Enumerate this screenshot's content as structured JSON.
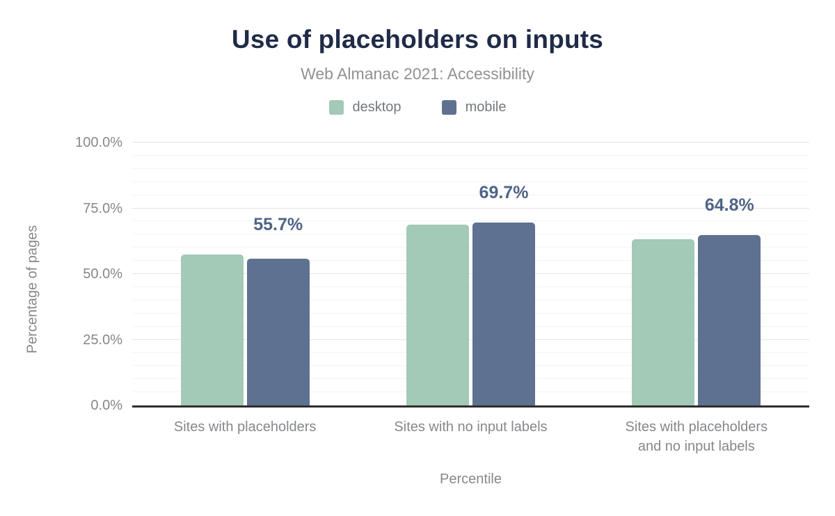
{
  "header": {
    "title": "Use of placeholders on inputs",
    "subtitle": "Web Almanac 2021: Accessibility"
  },
  "legend": {
    "items": [
      {
        "label": "desktop",
        "color": "#a3c9b7"
      },
      {
        "label": "mobile",
        "color": "#5e7190"
      }
    ]
  },
  "chart_data": {
    "type": "bar",
    "title": "Use of placeholders on inputs",
    "subtitle": "Web Almanac 2021: Accessibility",
    "categories": [
      "Sites with placeholders",
      "Sites with no input labels",
      "Sites with placeholders and no input labels"
    ],
    "xticks": [
      [
        "Sites with placeholders"
      ],
      [
        "Sites with no input labels"
      ],
      [
        "Sites with placeholders",
        "and no input labels"
      ]
    ],
    "series": [
      {
        "name": "desktop",
        "color": "#a3c9b7",
        "values": [
          57.4,
          68.9,
          63.3
        ]
      },
      {
        "name": "mobile",
        "color": "#5e7190",
        "values": [
          55.7,
          69.7,
          64.8
        ]
      }
    ],
    "data_labels": [
      "55.7%",
      "69.7%",
      "64.8%"
    ],
    "data_label_series": "mobile",
    "xlabel": "Percentile",
    "ylabel": "Percentage of pages",
    "ylim": [
      0,
      100
    ],
    "yticks": [
      {
        "value": 0,
        "label": "0.0%"
      },
      {
        "value": 25,
        "label": "25.0%"
      },
      {
        "value": 50,
        "label": "50.0%"
      },
      {
        "value": 75,
        "label": "75.0%"
      },
      {
        "value": 100,
        "label": "100.0%"
      }
    ],
    "grid": {
      "step": 5,
      "major_step": 25,
      "visible": true
    },
    "legend_position": "top",
    "colors": {
      "title": "#1f2b47",
      "subtitle": "#8f9193",
      "axis_text": "#85878a",
      "data_label": "#4e6587",
      "axis_line": "#2e2e2e"
    }
  }
}
